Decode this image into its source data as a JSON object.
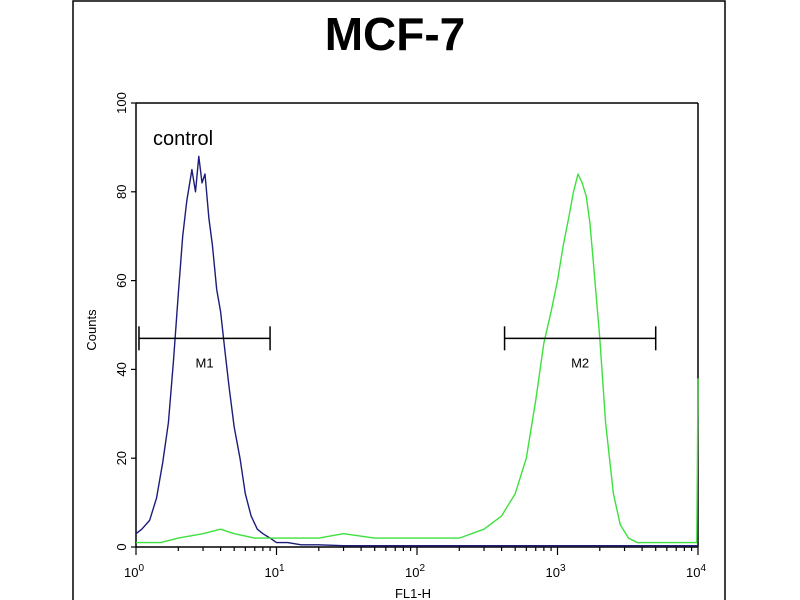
{
  "chart_data": {
    "type": "line",
    "title": "MCF-7",
    "xlabel": "FL1-H",
    "ylabel": "Counts",
    "x_scale": "log",
    "xlim": [
      1,
      10000
    ],
    "ylim": [
      0,
      100
    ],
    "x_tick_labels": [
      {
        "value": 1,
        "base": "10",
        "exp": "0"
      },
      {
        "value": 10,
        "base": "10",
        "exp": "1"
      },
      {
        "value": 100,
        "base": "10",
        "exp": "2"
      },
      {
        "value": 1000,
        "base": "10",
        "exp": "3"
      },
      {
        "value": 10000,
        "base": "10",
        "exp": "4"
      }
    ],
    "y_ticks": [
      0,
      20,
      40,
      60,
      80,
      100
    ],
    "y_tick_labels": [
      "0",
      "20",
      "40",
      "60",
      "80",
      "100"
    ],
    "annotation": "control",
    "grid": false,
    "series": [
      {
        "color": "#1c1c7a",
        "x": [
          1.0,
          1.1,
          1.25,
          1.4,
          1.55,
          1.7,
          1.85,
          2.0,
          2.15,
          2.3,
          2.5,
          2.65,
          2.8,
          2.95,
          3.1,
          3.3,
          3.5,
          3.75,
          4.0,
          4.3,
          4.6,
          5.0,
          5.5,
          6.0,
          6.6,
          7.3,
          8.0,
          9.0,
          10.0,
          12.0,
          15.0,
          20.0,
          30.0,
          50.0,
          100.0,
          300.0,
          1000.0,
          3000.0,
          10000.0
        ],
        "y": [
          3,
          4,
          6,
          11,
          19,
          28,
          42,
          57,
          70,
          78,
          85,
          80,
          88,
          82,
          84,
          74,
          68,
          58,
          53,
          44,
          36,
          27,
          20,
          12,
          7,
          4,
          3,
          2,
          1,
          1,
          0.5,
          0.5,
          0.3,
          0.3,
          0.3,
          0.3,
          0.3,
          0.3,
          0.3
        ]
      },
      {
        "color": "#3ee03e",
        "x": [
          1.0,
          1.5,
          2.0,
          3.0,
          4.0,
          5.0,
          7.0,
          10.0,
          20.0,
          30.0,
          50.0,
          100.0,
          200.0,
          300.0,
          400.0,
          500.0,
          600.0,
          700.0,
          800.0,
          900.0,
          1000.0,
          1100.0,
          1200.0,
          1300.0,
          1400.0,
          1500.0,
          1600.0,
          1700.0,
          1800.0,
          2000.0,
          2200.0,
          2500.0,
          2800.0,
          3200.0,
          3700.0,
          4500.0,
          6000.0,
          8000.0,
          9800.0,
          10000.0
        ],
        "y": [
          1,
          1,
          2,
          3,
          4,
          3,
          2,
          2,
          2,
          3,
          2,
          2,
          2,
          4,
          7,
          12,
          20,
          33,
          46,
          53,
          60,
          68,
          74,
          80,
          84,
          82,
          79,
          73,
          64,
          47,
          28,
          12,
          5,
          2,
          1,
          1,
          1,
          1,
          1,
          38
        ]
      }
    ],
    "gates": [
      {
        "label": "M1",
        "x_start": 1.05,
        "x_end": 9.0,
        "y": 47
      },
      {
        "label": "M2",
        "x_start": 420.0,
        "x_end": 5000.0,
        "y": 47
      }
    ]
  }
}
